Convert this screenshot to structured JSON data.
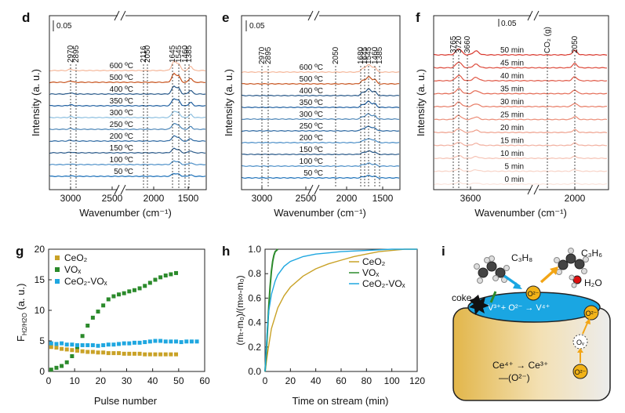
{
  "panels": {
    "d": {
      "letter": "d",
      "scale": "0.05",
      "xlabel": "Wavenumber (cm⁻¹)",
      "ylabel": "Intensity (a. u.)",
      "ticks": [
        "3000",
        "2500",
        "2000",
        "1500"
      ],
      "peaks": [
        "2970",
        "2895",
        "2116",
        "2050",
        "1645",
        "1545",
        "1460",
        "1385"
      ],
      "labels": [
        "600 ºC",
        "500 ºC",
        "400 ºC",
        "350 ºC",
        "300 ºC",
        "250 ºC",
        "200 ºC",
        "150 ºC",
        "100 ºC",
        "50 ºC"
      ]
    },
    "e": {
      "letter": "e",
      "scale": "0.05",
      "xlabel": "Wavenumber (cm⁻¹)",
      "ylabel": "Intensity (a. u.)",
      "ticks": [
        "3000",
        "2500",
        "2000",
        "1500"
      ],
      "peaks": [
        "2970",
        "2895",
        "2050",
        "1680",
        "1645",
        "1545",
        "1460",
        "1385"
      ],
      "labels": [
        "600 ºC",
        "500 ºC",
        "400 ºC",
        "350 ºC",
        "300 ºC",
        "250 ºC",
        "200 ºC",
        "150 ºC",
        "100 ºC",
        "50 ºC"
      ]
    },
    "f": {
      "letter": "f",
      "scale": "0.05",
      "xlabel": "Wavenumber (cm⁻¹)",
      "ylabel": "Intensity (a. u.)",
      "ticks": [
        "3600",
        "2000"
      ],
      "peaks": [
        "3765",
        "3720",
        "3660",
        "CO₂ (g)",
        "2050"
      ],
      "labels": [
        "50 min",
        "45 min",
        "40 min",
        "35 min",
        "30 min",
        "25 min",
        "20 min",
        "15 min",
        "10 min",
        "5 min",
        "0 min"
      ]
    },
    "g": {
      "letter": "g",
      "ylabel": "F",
      "ylabel_sub": "H2/H2O",
      "ylabel_unit": " (a. u.)",
      "xlabel": "Pulse number",
      "legend": [
        "CeO₂",
        "VOₓ",
        "CeO₂-VOₓ"
      ]
    },
    "h": {
      "letter": "h",
      "ylabel": "(mₜ-m₀)/(m∞-m₀)",
      "xlabel": "Time on stream (min)",
      "legend": [
        "CeO₂",
        "VOₓ",
        "CeO₂-VOₓ"
      ]
    },
    "i": {
      "letter": "i",
      "c3h8": "C₃H₈",
      "c3h6": "C₃H₆",
      "h2o": "H₂O",
      "coke": "coke",
      "o2": "O²⁻",
      "ov": "Oᵥ",
      "reaction1": "V³⁺+ O²⁻ → V⁴⁺",
      "reaction2": "Ce⁴⁺ → Ce³⁺",
      "reaction3": "—(O²⁻)"
    }
  },
  "colors": {
    "ceo2": "#c9a227",
    "vox": "#2b8a2b",
    "ceovox": "#1fa7e0"
  },
  "chart_data": [
    {
      "type": "scatter",
      "panel": "g",
      "xlabel": "Pulse number",
      "ylabel": "F H2/H2O (a. u.)",
      "xlim": [
        0,
        60
      ],
      "ylim": [
        0,
        20
      ],
      "xticks": [
        0,
        10,
        20,
        30,
        40,
        50,
        60
      ],
      "yticks": [
        0,
        5,
        10,
        15,
        20
      ],
      "series": [
        {
          "name": "CeO₂",
          "x": [
            1,
            3,
            5,
            7,
            9,
            11,
            13,
            15,
            17,
            19,
            21,
            23,
            25,
            27,
            29,
            31,
            33,
            35,
            37,
            39,
            41,
            43,
            45,
            47,
            49
          ],
          "values": [
            4.0,
            3.9,
            3.7,
            3.6,
            3.5,
            3.4,
            3.3,
            3.2,
            3.2,
            3.1,
            3.1,
            3.0,
            3.0,
            3.0,
            2.9,
            2.9,
            2.9,
            2.9,
            2.8,
            2.8,
            2.8,
            2.8,
            2.8,
            2.8,
            2.8
          ]
        },
        {
          "name": "VOₓ",
          "x": [
            1,
            3,
            5,
            7,
            9,
            11,
            13,
            15,
            17,
            19,
            21,
            23,
            25,
            27,
            29,
            31,
            33,
            35,
            37,
            39,
            41,
            43,
            45,
            47,
            49
          ],
          "values": [
            0.3,
            0.6,
            0.9,
            1.5,
            2.5,
            4.0,
            5.8,
            7.5,
            8.8,
            9.8,
            10.8,
            11.8,
            12.3,
            12.6,
            12.8,
            13.1,
            13.3,
            13.6,
            14.0,
            14.5,
            15.0,
            15.4,
            15.7,
            15.9,
            16.1
          ]
        },
        {
          "name": "CeO₂-VOₓ",
          "x": [
            1,
            3,
            5,
            7,
            9,
            11,
            13,
            15,
            17,
            19,
            21,
            23,
            25,
            27,
            29,
            31,
            33,
            35,
            37,
            39,
            41,
            43,
            45,
            47,
            49,
            51,
            53,
            55,
            57
          ],
          "values": [
            4.6,
            4.5,
            4.6,
            4.4,
            4.4,
            4.3,
            4.3,
            4.3,
            4.3,
            4.2,
            4.3,
            4.4,
            4.4,
            4.5,
            4.6,
            4.6,
            4.7,
            4.7,
            4.8,
            4.9,
            5.0,
            5.0,
            4.9,
            4.9,
            4.9,
            4.8,
            4.9,
            4.9,
            4.9
          ]
        }
      ]
    },
    {
      "type": "line",
      "panel": "h",
      "xlabel": "Time on stream (min)",
      "ylabel": "(mt-m0)/(m∞-m0)",
      "xlim": [
        0,
        120
      ],
      "ylim": [
        0.0,
        1.0
      ],
      "xticks": [
        0,
        20,
        40,
        60,
        80,
        100,
        120
      ],
      "yticks": [
        0.0,
        0.2,
        0.4,
        0.6,
        0.8,
        1.0
      ],
      "series": [
        {
          "name": "CeO₂",
          "x": [
            0,
            2,
            5,
            10,
            15,
            20,
            30,
            40,
            50,
            60,
            70,
            80,
            90,
            100,
            110,
            120
          ],
          "values": [
            0,
            0.15,
            0.35,
            0.52,
            0.62,
            0.69,
            0.78,
            0.84,
            0.88,
            0.91,
            0.94,
            0.96,
            0.98,
            0.99,
            1.0,
            1.0
          ]
        },
        {
          "name": "VOₓ",
          "x": [
            0,
            1,
            2,
            3,
            4,
            5,
            6,
            7,
            8,
            9,
            10
          ],
          "values": [
            0,
            0.15,
            0.35,
            0.55,
            0.7,
            0.82,
            0.9,
            0.95,
            0.98,
            0.99,
            1.0
          ]
        },
        {
          "name": "CeO₂-VOₓ",
          "x": [
            0,
            1,
            2,
            3,
            5,
            8,
            10,
            15,
            20,
            30,
            40,
            50,
            60,
            80,
            100,
            120
          ],
          "values": [
            0,
            0.2,
            0.38,
            0.5,
            0.63,
            0.74,
            0.79,
            0.86,
            0.9,
            0.94,
            0.96,
            0.97,
            0.98,
            0.99,
            1.0,
            1.0
          ]
        }
      ]
    }
  ]
}
